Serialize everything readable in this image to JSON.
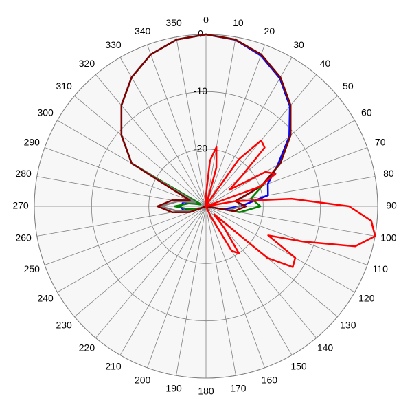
{
  "chart_data": {
    "type": "polar",
    "direction": "clockwise",
    "zero": "top",
    "rlim": [
      -30,
      0
    ],
    "rticks": [
      -20,
      -10,
      0
    ],
    "thetaticks": [
      0,
      10,
      20,
      30,
      40,
      50,
      60,
      70,
      80,
      90,
      100,
      110,
      120,
      130,
      140,
      150,
      160,
      170,
      180,
      190,
      200,
      210,
      220,
      230,
      240,
      250,
      260,
      270,
      280,
      290,
      300,
      310,
      320,
      330,
      340,
      350
    ],
    "grid": true,
    "series": [
      {
        "color": "#0000ff",
        "theta": [
          0,
          10,
          20,
          30,
          40,
          50,
          60,
          70,
          80,
          90,
          100,
          110,
          120,
          130,
          140,
          150,
          160,
          170,
          180,
          190,
          200,
          210,
          220,
          230,
          240,
          250,
          260,
          270,
          280,
          290,
          300,
          310,
          320,
          330,
          340,
          350
        ],
        "values": [
          0,
          -0.5,
          -2,
          -4.2,
          -7.2,
          -11,
          -15.5,
          -18.5,
          -19,
          -24,
          -27,
          -30,
          -30,
          -30,
          -30,
          -30,
          -30,
          -30,
          -30,
          -30,
          -30,
          -30,
          -30,
          -30,
          -30,
          -28,
          -26,
          -25.5,
          -26,
          -28,
          -15,
          -10.7,
          -7,
          -4,
          -1.8,
          -0.45
        ]
      },
      {
        "color": "#008000",
        "theta": [
          0,
          10,
          20,
          30,
          40,
          50,
          60,
          70,
          80,
          90,
          100,
          110,
          120,
          130,
          140,
          150,
          160,
          170,
          180,
          190,
          200,
          210,
          220,
          230,
          240,
          250,
          260,
          270,
          280,
          290,
          300,
          310,
          320,
          330,
          340,
          350
        ],
        "values": [
          0,
          -0.45,
          -1.8,
          -4,
          -7,
          -10.7,
          -15,
          -19.5,
          -22,
          -20.5,
          -24,
          -30,
          -30,
          -30,
          -30,
          -30,
          -30,
          -30,
          -30,
          -30,
          -30,
          -30,
          -30,
          -30,
          -30,
          -29,
          -27,
          -24.5,
          -27,
          -29,
          -15,
          -10.7,
          -7,
          -4,
          -1.8,
          -0.45
        ]
      },
      {
        "color": "#808080",
        "theta": [
          0,
          10,
          20,
          30,
          40,
          50,
          60,
          70,
          80,
          90,
          100,
          110,
          120,
          130,
          140,
          150,
          160,
          170,
          180,
          190,
          200,
          210,
          220,
          230,
          240,
          250,
          260,
          270,
          280,
          290,
          300,
          310,
          320,
          330,
          340,
          350
        ],
        "values": [
          0,
          -0.45,
          -1.8,
          -4,
          -7,
          -10.7,
          -15,
          -19.7,
          -24.5,
          -24,
          -26,
          -30,
          -30,
          -30,
          -30,
          -30,
          -30,
          -30,
          -30,
          -30,
          -30,
          -30,
          -30,
          -30,
          -30,
          -28,
          -25,
          -22,
          -25,
          -28,
          -15,
          -10.7,
          -7,
          -4,
          -1.8,
          -0.45
        ]
      },
      {
        "color": "#800000",
        "theta": [
          0,
          10,
          20,
          30,
          40,
          50,
          60,
          70,
          80,
          90,
          100,
          110,
          120,
          130,
          140,
          150,
          160,
          170,
          180,
          190,
          200,
          210,
          220,
          230,
          240,
          250,
          260,
          270,
          280,
          290,
          300,
          310,
          320,
          330,
          340,
          350
        ],
        "values": [
          0,
          -0.45,
          -1.8,
          -4,
          -7,
          -10.7,
          -15,
          -19.7,
          -24.8,
          -23,
          -25,
          -30,
          -30,
          -30,
          -30,
          -30,
          -30,
          -30,
          -30,
          -30,
          -30,
          -30,
          -30,
          -30,
          -30,
          -27,
          -24,
          -21.5,
          -24,
          -27,
          -15,
          -10.7,
          -7,
          -4,
          -1.8,
          -0.45
        ]
      },
      {
        "color": "#ff0000",
        "theta": [
          0,
          5,
          10,
          15,
          20,
          25,
          30,
          35,
          40,
          45,
          50,
          55,
          60,
          65,
          70,
          75,
          80,
          85,
          90,
          95,
          100,
          105,
          110,
          115,
          120,
          125,
          130,
          135,
          140,
          145,
          150,
          155,
          160,
          165,
          170,
          175,
          180,
          185,
          190,
          195,
          200,
          205,
          210,
          215,
          220,
          225,
          230,
          235,
          240,
          245,
          250,
          255,
          260,
          265,
          270,
          275,
          280,
          285,
          290,
          295,
          300,
          305,
          310,
          315,
          320,
          325,
          330,
          335,
          340,
          345,
          350,
          355
        ],
        "values": [
          -28,
          -22,
          -19.5,
          -23,
          -30,
          -30,
          -29,
          -20,
          -15,
          -15.5,
          -22,
          -25,
          -18,
          -16.6,
          -20,
          -30,
          -25,
          -15,
          -5,
          -1,
          0,
          -3,
          -12,
          -18,
          -12,
          -11.5,
          -16,
          -28,
          -25,
          -20,
          -21,
          -28,
          -30,
          -30,
          -30,
          -30,
          -30,
          -30,
          -30,
          -30,
          -30,
          -30,
          -30,
          -30,
          -30,
          -30,
          -30,
          -30,
          -30,
          -30,
          -30,
          -30,
          -30,
          -30,
          -30,
          -30,
          -30,
          -30,
          -30,
          -30,
          -30,
          -30,
          -30,
          -30,
          -30,
          -30,
          -30,
          -30,
          -30,
          -30,
          -30,
          -30
        ]
      }
    ]
  }
}
